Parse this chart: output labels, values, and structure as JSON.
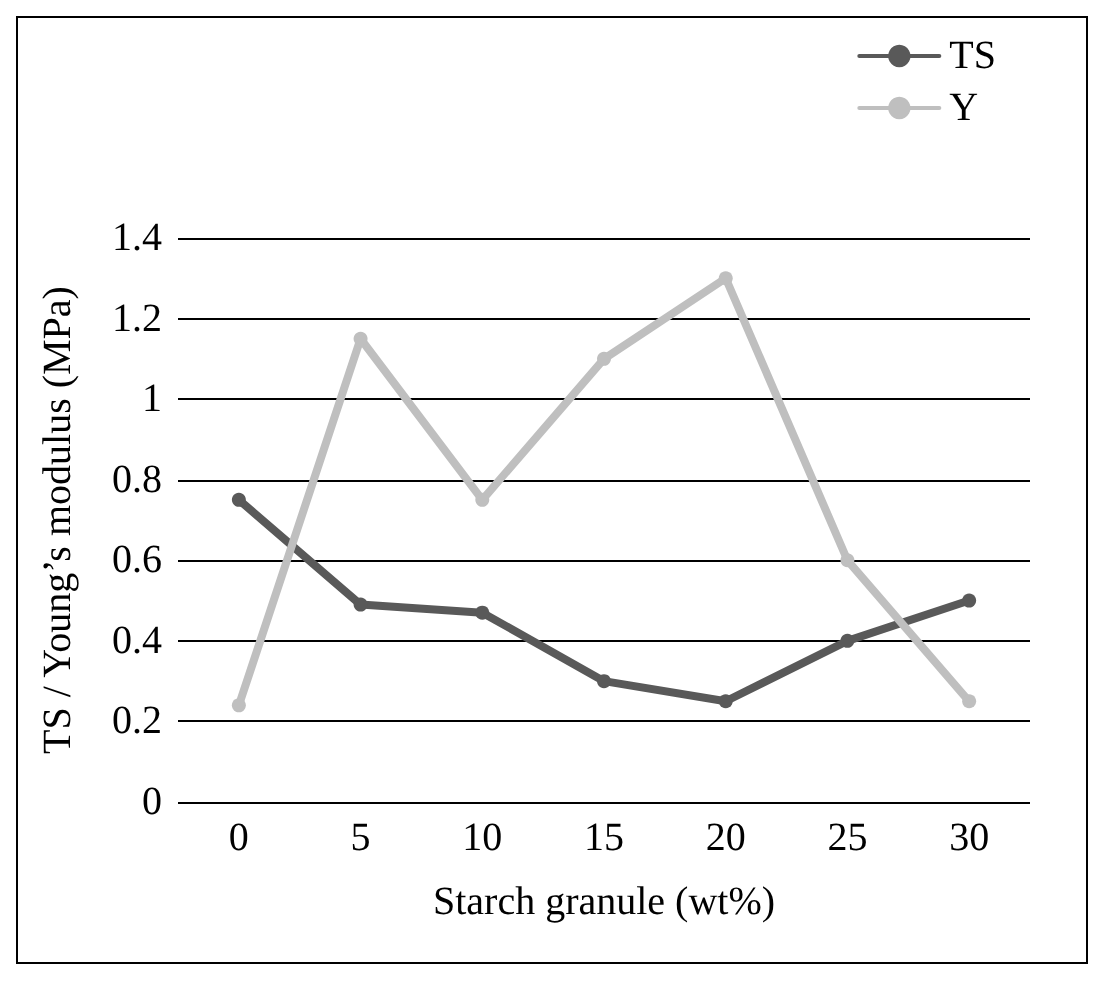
{
  "chart_data": {
    "type": "line",
    "xlabel": "Starch granule (wt%)",
    "ylabel": "TS / Young’s modulus (MPa)",
    "categories": [
      "0",
      "5",
      "10",
      "15",
      "20",
      "25",
      "30"
    ],
    "series": [
      {
        "name": "TS",
        "color": "#595959",
        "values": [
          0.75,
          0.49,
          0.47,
          0.3,
          0.25,
          0.4,
          0.5
        ]
      },
      {
        "name": "Y",
        "color": "#bfbfbf",
        "values": [
          0.24,
          1.15,
          0.75,
          1.1,
          1.3,
          0.6,
          0.25
        ]
      }
    ],
    "ylim": [
      0,
      1.4
    ],
    "yticks": [
      0,
      0.2,
      0.4,
      0.6,
      0.8,
      1,
      1.2,
      1.4
    ],
    "grid": "y",
    "legend": "top right",
    "marker": "circle",
    "line_style": "solid"
  }
}
